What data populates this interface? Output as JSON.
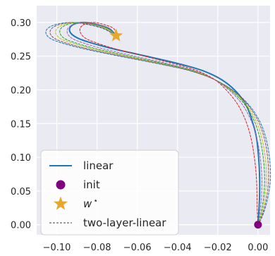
{
  "chart_data": {
    "type": "line",
    "title": "",
    "xlabel": "",
    "ylabel": "",
    "xlim": [
      -0.11,
      0.006
    ],
    "ylim": [
      -0.015,
      0.325
    ],
    "x_ticks": [
      -0.1,
      -0.08,
      -0.06,
      -0.04,
      -0.02,
      0.0
    ],
    "x_tick_labels": [
      "−0.10",
      "−0.08",
      "−0.06",
      "−0.04",
      "−0.02",
      "0.00"
    ],
    "y_ticks": [
      0.0,
      0.05,
      0.1,
      0.15,
      0.2,
      0.25,
      0.3
    ],
    "y_tick_labels": [
      "0.00",
      "0.05",
      "0.10",
      "0.15",
      "0.20",
      "0.25",
      "0.30"
    ],
    "grid": true,
    "legend_position": "lower-left",
    "legend": [
      {
        "label": "linear",
        "kind": "line",
        "color": "#1f77b4"
      },
      {
        "label": "init",
        "kind": "marker",
        "marker": "circle",
        "color": "#800080"
      },
      {
        "label": "w",
        "superscript": "⋆",
        "kind": "marker",
        "marker": "star",
        "color": "#e6a82c"
      },
      {
        "label": "two-layer-linear",
        "kind": "dashed-line",
        "color": "#444444"
      }
    ],
    "series": [
      {
        "name": "linear",
        "style": "solid",
        "color": "#1f77b4",
        "points": [
          [
            0.0,
            0.0
          ],
          [
            0.0002,
            0.01
          ],
          [
            0.0005,
            0.025
          ],
          [
            0.0008,
            0.045
          ],
          [
            0.0008,
            0.07
          ],
          [
            0.0003,
            0.1
          ],
          [
            -0.0008,
            0.13
          ],
          [
            -0.003,
            0.155
          ],
          [
            -0.006,
            0.178
          ],
          [
            -0.011,
            0.198
          ],
          [
            -0.018,
            0.215
          ],
          [
            -0.027,
            0.228
          ],
          [
            -0.037,
            0.237
          ],
          [
            -0.048,
            0.245
          ],
          [
            -0.06,
            0.253
          ],
          [
            -0.072,
            0.261
          ],
          [
            -0.082,
            0.269
          ],
          [
            -0.089,
            0.276
          ],
          [
            -0.093,
            0.284
          ],
          [
            -0.0935,
            0.292
          ],
          [
            -0.091,
            0.298
          ],
          [
            -0.086,
            0.3
          ],
          [
            -0.08,
            0.297
          ],
          [
            -0.074,
            0.291
          ],
          [
            -0.0705,
            0.2805
          ]
        ]
      },
      {
        "name": "two-layer-linear",
        "style": "dashed",
        "color": "#1f77b4",
        "points": [
          [
            0.0,
            0.0
          ],
          [
            0.0018,
            0.01
          ],
          [
            0.0036,
            0.025
          ],
          [
            0.0052,
            0.045
          ],
          [
            0.0062,
            0.07
          ],
          [
            0.0057,
            0.1
          ],
          [
            0.0038,
            0.13
          ],
          [
            0.0006,
            0.155
          ],
          [
            -0.0046,
            0.178
          ],
          [
            -0.0118,
            0.198
          ],
          [
            -0.0214,
            0.215
          ],
          [
            -0.0334,
            0.228
          ],
          [
            -0.0466,
            0.237
          ],
          [
            -0.0602,
            0.245
          ],
          [
            -0.0738,
            0.253
          ],
          [
            -0.0866,
            0.261
          ],
          [
            -0.0968,
            0.269
          ],
          [
            -0.103,
            0.276
          ],
          [
            -0.1054,
            0.284
          ],
          [
            -0.1042,
            0.292
          ],
          [
            -0.0992,
            0.298
          ],
          [
            -0.0922,
            0.3
          ],
          [
            -0.0848,
            0.297
          ],
          [
            -0.077,
            0.291
          ],
          [
            -0.0705,
            0.2805
          ]
        ]
      },
      {
        "name": "two-layer-linear",
        "style": "dashed",
        "color": "#8c564b",
        "points": [
          [
            0.0,
            0.0
          ],
          [
            0.0015,
            0.01
          ],
          [
            0.0031,
            0.025
          ],
          [
            0.0045,
            0.045
          ],
          [
            0.0053,
            0.07
          ],
          [
            0.0048,
            0.1
          ],
          [
            0.003,
            0.13
          ],
          [
            -0.0001,
            0.155
          ],
          [
            -0.0051,
            0.178
          ],
          [
            -0.0121,
            0.198
          ],
          [
            -0.0214,
            0.215
          ],
          [
            -0.033,
            0.228
          ],
          [
            -0.0458,
            0.237
          ],
          [
            -0.059,
            0.245
          ],
          [
            -0.0723,
            0.253
          ],
          [
            -0.0848,
            0.261
          ],
          [
            -0.0948,
            0.269
          ],
          [
            -0.1009,
            0.276
          ],
          [
            -0.1033,
            0.284
          ],
          [
            -0.1022,
            0.292
          ],
          [
            -0.0975,
            0.298
          ],
          [
            -0.0907,
            0.3
          ],
          [
            -0.0837,
            0.297
          ],
          [
            -0.0763,
            0.291
          ],
          [
            -0.0705,
            0.2805
          ]
        ]
      },
      {
        "name": "two-layer-linear",
        "style": "dashed",
        "color": "#bcbd22",
        "points": [
          [
            0.0,
            0.0
          ],
          [
            0.0012,
            0.01
          ],
          [
            0.0025,
            0.025
          ],
          [
            0.0036,
            0.045
          ],
          [
            0.0042,
            0.07
          ],
          [
            0.0036,
            0.1
          ],
          [
            0.0018,
            0.13
          ],
          [
            -0.0011,
            0.155
          ],
          [
            -0.0059,
            0.178
          ],
          [
            -0.0126,
            0.198
          ],
          [
            -0.0214,
            0.215
          ],
          [
            -0.0325,
            0.228
          ],
          [
            -0.0447,
            0.237
          ],
          [
            -0.0574,
            0.245
          ],
          [
            -0.0702,
            0.253
          ],
          [
            -0.0823,
            0.261
          ],
          [
            -0.092,
            0.269
          ],
          [
            -0.0981,
            0.276
          ],
          [
            -0.1005,
            0.284
          ],
          [
            -0.0996,
            0.292
          ],
          [
            -0.0953,
            0.298
          ],
          [
            -0.0889,
            0.3
          ],
          [
            -0.0822,
            0.297
          ],
          [
            -0.0754,
            0.291
          ],
          [
            -0.0705,
            0.2805
          ]
        ]
      },
      {
        "name": "two-layer-linear",
        "style": "dashed",
        "color": "#2ca02c",
        "points": [
          [
            0.0,
            0.0
          ],
          [
            0.0009,
            0.01
          ],
          [
            0.002,
            0.025
          ],
          [
            0.0029,
            0.045
          ],
          [
            0.0033,
            0.07
          ],
          [
            0.0026,
            0.1
          ],
          [
            0.0008,
            0.13
          ],
          [
            -0.002,
            0.155
          ],
          [
            -0.0065,
            0.178
          ],
          [
            -0.013,
            0.198
          ],
          [
            -0.0214,
            0.215
          ],
          [
            -0.032,
            0.228
          ],
          [
            -0.0438,
            0.237
          ],
          [
            -0.0561,
            0.245
          ],
          [
            -0.0685,
            0.253
          ],
          [
            -0.0804,
            0.261
          ],
          [
            -0.0899,
            0.269
          ],
          [
            -0.096,
            0.276
          ],
          [
            -0.0984,
            0.284
          ],
          [
            -0.0977,
            0.292
          ],
          [
            -0.0937,
            0.298
          ],
          [
            -0.0875,
            0.3
          ],
          [
            -0.0812,
            0.297
          ],
          [
            -0.0747,
            0.291
          ],
          [
            -0.0705,
            0.2805
          ]
        ]
      },
      {
        "name": "two-layer-linear",
        "style": "dashed",
        "color": "#9467bd",
        "points": [
          [
            0.0,
            0.0
          ],
          [
            0.0005,
            0.01
          ],
          [
            0.0012,
            0.025
          ],
          [
            0.0018,
            0.045
          ],
          [
            0.0019,
            0.07
          ],
          [
            0.0011,
            0.1
          ],
          [
            -0.0007,
            0.13
          ],
          [
            -0.0035,
            0.155
          ],
          [
            -0.0077,
            0.178
          ],
          [
            -0.0137,
            0.198
          ],
          [
            -0.0214,
            0.215
          ],
          [
            -0.0312,
            0.228
          ],
          [
            -0.0422,
            0.237
          ],
          [
            -0.0538,
            0.245
          ],
          [
            -0.0656,
            0.253
          ],
          [
            -0.077,
            0.261
          ],
          [
            -0.0862,
            0.269
          ],
          [
            -0.0922,
            0.276
          ],
          [
            -0.0947,
            0.284
          ],
          [
            -0.0943,
            0.292
          ],
          [
            -0.0909,
            0.298
          ],
          [
            -0.0853,
            0.3
          ],
          [
            -0.0795,
            0.297
          ],
          [
            -0.0736,
            0.291
          ],
          [
            -0.0705,
            0.2805
          ]
        ]
      },
      {
        "name": "two-layer-linear",
        "style": "dashed",
        "color": "#d62728",
        "points": [
          [
            0.0,
            0.0
          ],
          [
            -0.0002,
            0.01
          ],
          [
            -0.0004,
            0.025
          ],
          [
            -0.0005,
            0.045
          ],
          [
            -0.0008,
            0.07
          ],
          [
            -0.0018,
            0.1
          ],
          [
            -0.0036,
            0.13
          ],
          [
            -0.0062,
            0.155
          ],
          [
            -0.01,
            0.178
          ],
          [
            -0.0152,
            0.198
          ],
          [
            -0.0214,
            0.215
          ],
          [
            -0.0298,
            0.228
          ],
          [
            -0.0394,
            0.237
          ],
          [
            -0.0498,
            0.245
          ],
          [
            -0.0605,
            0.253
          ],
          [
            -0.071,
            0.261
          ],
          [
            -0.0796,
            0.269
          ],
          [
            -0.0854,
            0.276
          ],
          [
            -0.0881,
            0.284
          ],
          [
            -0.0883,
            0.292
          ],
          [
            -0.0858,
            0.298
          ],
          [
            -0.0814,
            0.3
          ],
          [
            -0.0766,
            0.297
          ],
          [
            -0.0717,
            0.291
          ],
          [
            -0.0705,
            0.2805
          ]
        ]
      }
    ],
    "markers": [
      {
        "name": "init",
        "shape": "circle",
        "x": 0.0,
        "y": 0.0,
        "color": "#800080"
      },
      {
        "name": "w*",
        "shape": "star",
        "x": -0.0705,
        "y": 0.2805,
        "color": "#e6a82c"
      }
    ]
  }
}
